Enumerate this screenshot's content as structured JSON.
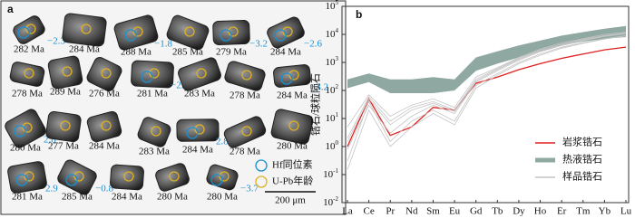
{
  "panel_a": {
    "label": "a",
    "grains": [
      {
        "age": "282 Ma",
        "hf": "−2.3"
      },
      {
        "age": "284 Ma"
      },
      {
        "age": "288 Ma",
        "hf": "−1.8"
      },
      {
        "age": "285 Ma"
      },
      {
        "age": "279 Ma",
        "hf": "−3.2"
      },
      {
        "age": "284 Ma",
        "hf": "−2.6"
      },
      {
        "age": "278 Ma"
      },
      {
        "age": "289 Ma"
      },
      {
        "age": "276 Ma"
      },
      {
        "age": "281 Ma",
        "hf": "−2.5"
      },
      {
        "age": "283 Ma"
      },
      {
        "age": "278 Ma"
      },
      {
        "age": "284 Ma",
        "hf": "−3.2"
      },
      {
        "age": "280 Ma",
        "hf": "2.8"
      },
      {
        "age": "277 Ma"
      },
      {
        "age": "284 Ma"
      },
      {
        "age": "283 Ma"
      },
      {
        "age": "284 Ma",
        "hf": "2.8"
      },
      {
        "age": "278 Ma"
      },
      {
        "age": "280 Ma"
      },
      {
        "age": "281 Ma",
        "hf": "2.9"
      },
      {
        "age": "285 Ma",
        "hf": "−0.8"
      },
      {
        "age": "284 Ma"
      },
      {
        "age": "280 Ma"
      },
      {
        "age": "280 Ma",
        "hf": "−3.7"
      }
    ],
    "legend": [
      "Hf同位素",
      "U-Pb年龄"
    ],
    "scale_bar": "200 μm"
  },
  "chart_data": {
    "type": "line",
    "label": "b",
    "y_label": "锆石/球粒陨石",
    "log_y": true,
    "categories": [
      "La",
      "Ce",
      "Pr",
      "Nd",
      "Sm",
      "Eu",
      "Gd",
      "Tb",
      "Dy",
      "Ho",
      "Er",
      "Tm",
      "Yb",
      "Lu"
    ],
    "ylim": [
      0.01,
      100000
    ],
    "yticks": [
      {
        "value": 0.01,
        "label": "10^-2"
      },
      {
        "value": 0.1,
        "label": "10^-1"
      },
      {
        "value": 1,
        "label": "10^0"
      },
      {
        "value": 10,
        "label": "10^1"
      },
      {
        "value": 100,
        "label": "10^2"
      },
      {
        "value": 1000,
        "label": "10^3"
      },
      {
        "value": 10000,
        "label": "10^4"
      },
      {
        "value": 100000,
        "label": "10^5"
      }
    ],
    "series": [
      {
        "name": "岩浆锆石",
        "color": "#e02020",
        "values": [
          1,
          50,
          2.5,
          5,
          25,
          20,
          180,
          300,
          550,
          900,
          1400,
          2000,
          2800,
          3500
        ]
      },
      {
        "name": "热液锆石",
        "color": "#8fa8a2",
        "high": [
          250,
          400,
          250,
          250,
          300,
          250,
          1500,
          2500,
          4000,
          6000,
          9000,
          12000,
          16000,
          20000
        ],
        "low": [
          120,
          200,
          80,
          80,
          80,
          100,
          500,
          900,
          1500,
          2500,
          4000,
          5500,
          7000,
          8000
        ]
      },
      {
        "name": "样品锆石",
        "color": "#c4c4c4",
        "lines": [
          [
            0.3,
            40,
            1.5,
            8,
            20,
            8,
            150,
            400,
            1000,
            2000,
            3500,
            5000,
            7000,
            9000
          ],
          [
            2,
            60,
            8,
            25,
            40,
            20,
            250,
            600,
            1400,
            2800,
            4500,
            6500,
            9000,
            11000
          ],
          [
            0.8,
            30,
            3,
            12,
            30,
            15,
            200,
            500,
            1200,
            2400,
            4000,
            6000,
            8500,
            10500
          ],
          [
            5,
            70,
            12,
            30,
            50,
            25,
            300,
            650,
            1500,
            3000,
            5000,
            7000,
            10000,
            12000
          ],
          [
            0.15,
            20,
            1,
            5,
            15,
            6,
            120,
            350,
            900,
            1800,
            3200,
            4800,
            6800,
            8800
          ],
          [
            1.5,
            50,
            6,
            20,
            35,
            18,
            220,
            550,
            1300,
            2600,
            4200,
            6200,
            8800,
            11000
          ]
        ]
      }
    ]
  }
}
